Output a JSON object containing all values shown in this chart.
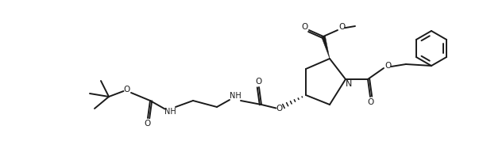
{
  "bg_color": "#ffffff",
  "line_color": "#1a1a1a",
  "line_width": 1.4,
  "font_size": 7.5,
  "fig_width": 6.08,
  "fig_height": 2.12,
  "dpi": 100,
  "xlim": [
    0,
    60.8
  ],
  "ylim": [
    0,
    21.2
  ]
}
